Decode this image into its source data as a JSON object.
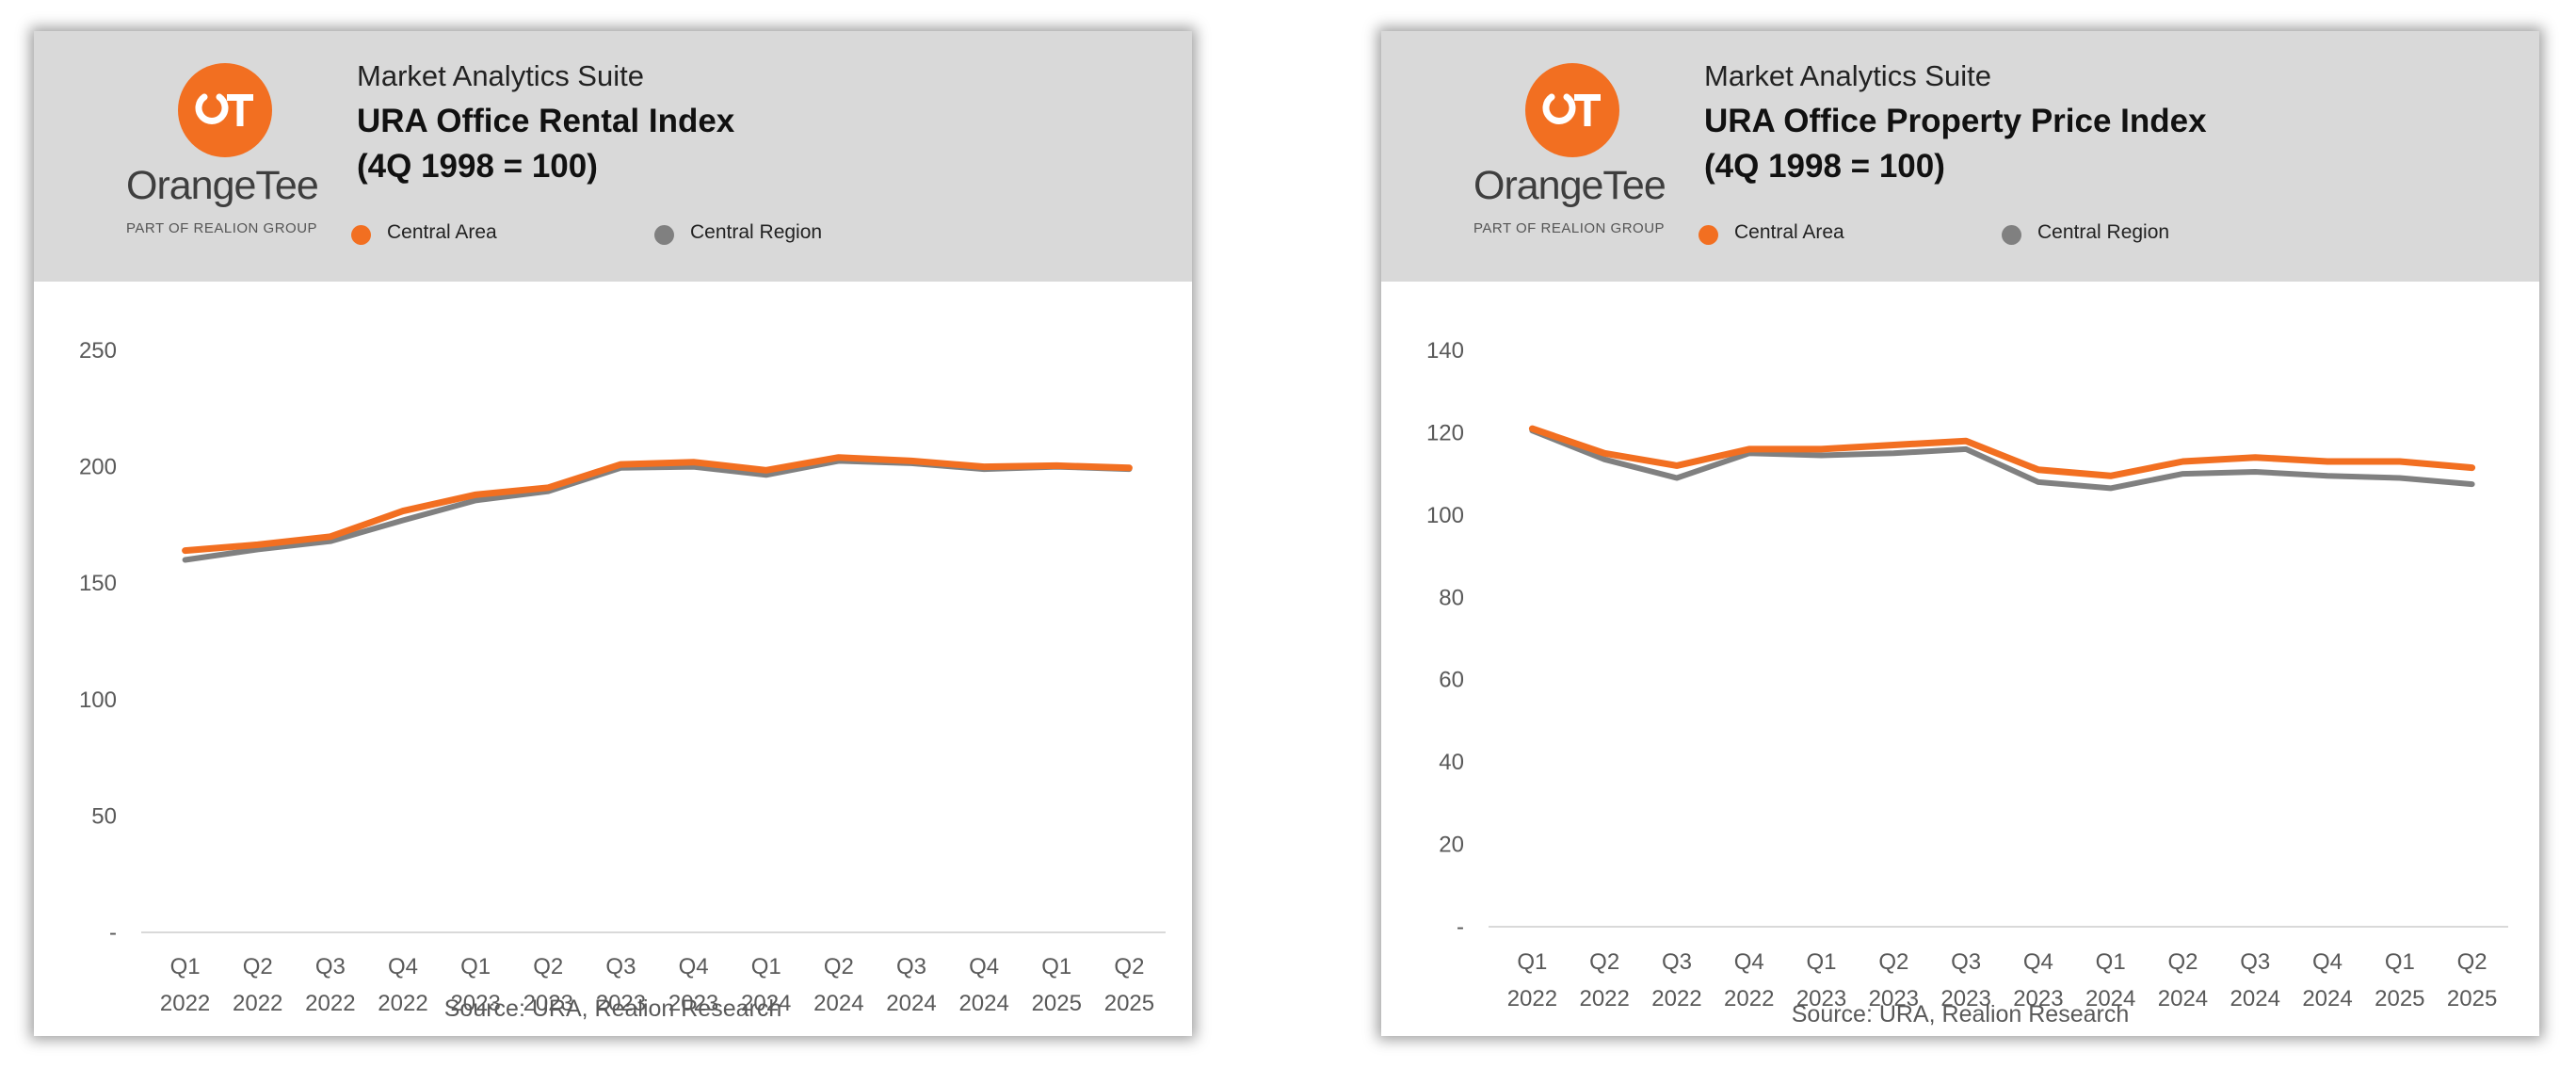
{
  "colors": {
    "central_area": "#f26f21",
    "central_region": "#808080",
    "header_bg": "#d9d9d9",
    "brand": "#f26f21"
  },
  "panels": [
    {
      "logo": {
        "monogram": "OT",
        "wordmark": "OrangeTee",
        "tagline": "PART OF REALION GROUP"
      },
      "suite": "Market Analytics Suite",
      "title": "URA Office Rental Index",
      "subtitle": "(4Q 1998 = 100)",
      "legend": [
        "Central Area",
        "Central Region"
      ],
      "source": "Source: URA, Realion Research"
    },
    {
      "logo": {
        "monogram": "OT",
        "wordmark": "OrangeTee",
        "tagline": "PART OF REALION GROUP"
      },
      "suite": "Market Analytics Suite",
      "title": "URA Office Property Price Index",
      "subtitle": "(4Q 1998 = 100)",
      "legend": [
        "Central Area",
        "Central Region"
      ],
      "source": "Source: URA, Realion Research"
    }
  ],
  "chart_data": [
    {
      "type": "line",
      "title": "URA Office Rental Index",
      "subtitle": "(4Q 1998 = 100)",
      "categories": [
        [
          "Q1",
          "2022"
        ],
        [
          "Q2",
          "2022"
        ],
        [
          "Q3",
          "2022"
        ],
        [
          "Q4",
          "2022"
        ],
        [
          "Q1",
          "2023"
        ],
        [
          "Q2",
          "2023"
        ],
        [
          "Q3",
          "2023"
        ],
        [
          "Q4",
          "2023"
        ],
        [
          "Q1",
          "2024"
        ],
        [
          "Q2",
          "2024"
        ],
        [
          "Q3",
          "2024"
        ],
        [
          "Q4",
          "2024"
        ],
        [
          "Q1",
          "2025"
        ],
        [
          "Q2",
          "2025"
        ]
      ],
      "series": [
        {
          "name": "Central Area",
          "color": "#f26f21",
          "values": [
            164,
            166.5,
            170,
            181,
            188,
            191,
            201,
            202,
            198.5,
            204,
            202.5,
            200,
            200.5,
            199.5
          ]
        },
        {
          "name": "Central Region",
          "color": "#808080",
          "values": [
            160,
            164.5,
            168,
            177,
            185.5,
            189.5,
            199.5,
            200,
            196.5,
            202.5,
            201.5,
            199,
            200,
            199
          ]
        }
      ],
      "yticks": [
        "-",
        "50",
        "100",
        "150",
        "200",
        "250"
      ],
      "ylim": [
        0,
        250
      ],
      "legend_position": "top",
      "grid": false,
      "source": "Source: URA, Realion Research"
    },
    {
      "type": "line",
      "title": "URA Office Property Price Index",
      "subtitle": "(4Q 1998 = 100)",
      "categories": [
        [
          "Q1",
          "2022"
        ],
        [
          "Q2",
          "2022"
        ],
        [
          "Q3",
          "2022"
        ],
        [
          "Q4",
          "2022"
        ],
        [
          "Q1",
          "2023"
        ],
        [
          "Q2",
          "2023"
        ],
        [
          "Q3",
          "2023"
        ],
        [
          "Q4",
          "2023"
        ],
        [
          "Q1",
          "2024"
        ],
        [
          "Q2",
          "2024"
        ],
        [
          "Q3",
          "2024"
        ],
        [
          "Q4",
          "2024"
        ],
        [
          "Q1",
          "2025"
        ],
        [
          "Q2",
          "2025"
        ]
      ],
      "series": [
        {
          "name": "Central Area",
          "color": "#f26f21",
          "values": [
            121,
            115,
            112,
            116,
            116,
            117,
            118,
            111,
            109.5,
            113,
            114,
            113,
            113,
            111.5
          ]
        },
        {
          "name": "Central Region",
          "color": "#808080",
          "values": [
            120.5,
            113.5,
            109,
            115,
            114.5,
            115,
            116,
            108,
            106.5,
            110,
            110.5,
            109.5,
            109,
            107.5
          ]
        }
      ],
      "yticks": [
        "-",
        "20",
        "40",
        "60",
        "80",
        "100",
        "120",
        "140"
      ],
      "ylim": [
        0,
        140
      ],
      "legend_position": "top",
      "grid": false,
      "source": "Source: URA, Realion Research"
    }
  ]
}
